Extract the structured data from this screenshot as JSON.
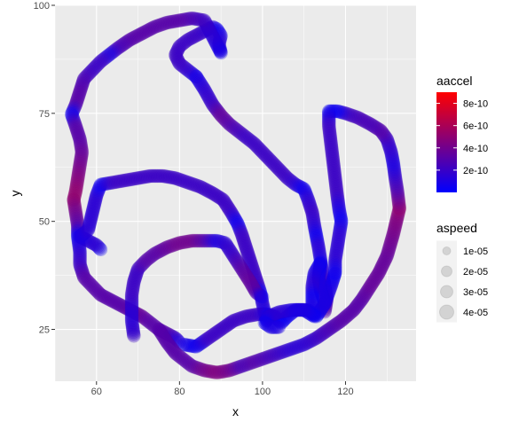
{
  "chart_data": {
    "type": "scatter",
    "title": "",
    "xlabel": "x",
    "ylabel": "y",
    "xlim": [
      50,
      137
    ],
    "ylim": [
      13,
      100
    ],
    "x_ticks": [
      60,
      80,
      100,
      120
    ],
    "y_ticks": [
      25,
      50,
      75,
      100
    ],
    "x_minor_ticks": [
      50,
      70,
      90,
      110,
      130
    ],
    "y_minor_ticks": [
      37.5,
      62.5,
      87.5
    ],
    "grid": true,
    "panel_background": "#EBEBEB",
    "grid_color": "#FFFFFF",
    "point_alpha": 0.28,
    "legend_position": "right",
    "color_legend": {
      "title": "aaccel",
      "range": [
        0,
        9e-10
      ],
      "gradient": [
        "#0000FF",
        "#FF0000"
      ],
      "breaks": [
        {
          "value": 2e-10,
          "label": "2e-10"
        },
        {
          "value": 4e-10,
          "label": "4e-10"
        },
        {
          "value": 6e-10,
          "label": "6e-10"
        },
        {
          "value": 8e-10,
          "label": "8e-10"
        }
      ]
    },
    "size_legend": {
      "title": "aspeed",
      "entries": [
        {
          "value": 1e-05,
          "label": "1e-05"
        },
        {
          "value": 2e-05,
          "label": "2e-05"
        },
        {
          "value": 3e-05,
          "label": "3e-05"
        },
        {
          "value": 4e-05,
          "label": "4e-05"
        }
      ]
    },
    "series": [
      {
        "points": [
          [
            84,
            83.5,
            0.8
          ],
          [
            82,
            85,
            1.5
          ],
          [
            80,
            86.5,
            2
          ],
          [
            79,
            88.5,
            2
          ],
          [
            80,
            90.5,
            2
          ],
          [
            82,
            92,
            2
          ],
          [
            85,
            93.5,
            2
          ],
          [
            88,
            95,
            1.5
          ],
          [
            89,
            94.5,
            0.5
          ],
          [
            90,
            93,
            1
          ],
          [
            89.5,
            91,
            1.5
          ],
          [
            90,
            89,
            0.8
          ],
          [
            86,
            96.5,
            2
          ],
          [
            83,
            97,
            2.5
          ],
          [
            80,
            96.5,
            3
          ],
          [
            77,
            96,
            3
          ],
          [
            74,
            95,
            3
          ],
          [
            71,
            93.5,
            3
          ],
          [
            68,
            92,
            3
          ],
          [
            65,
            90,
            2.5
          ],
          [
            63,
            88.5,
            1
          ],
          [
            61,
            87,
            2
          ],
          [
            59,
            85,
            2
          ],
          [
            57,
            83,
            2.5
          ],
          [
            56,
            80,
            3
          ],
          [
            55,
            77,
            3
          ],
          [
            54,
            74.8,
            0.5
          ],
          [
            55,
            72,
            3
          ],
          [
            56,
            69,
            3
          ],
          [
            56.5,
            66,
            3.5
          ],
          [
            56,
            63,
            4
          ],
          [
            55.5,
            60,
            4.5
          ],
          [
            55,
            57,
            5
          ],
          [
            54.5,
            55,
            5
          ]
        ]
      },
      {
        "points": [
          [
            84,
            83.5,
            0.8
          ],
          [
            86,
            80.5,
            1.5
          ],
          [
            88,
            77,
            2
          ],
          [
            90,
            74.5,
            3.5
          ],
          [
            92,
            72.5,
            3
          ],
          [
            94,
            71,
            2.5
          ],
          [
            96,
            69.5,
            2
          ],
          [
            98,
            68,
            2
          ],
          [
            100,
            66,
            2
          ],
          [
            102,
            64,
            2
          ],
          [
            104,
            62,
            2
          ],
          [
            106,
            60,
            2
          ],
          [
            108,
            58.5,
            1.5
          ],
          [
            110,
            57.5,
            0.5
          ],
          [
            111,
            55,
            1.5
          ],
          [
            112,
            52,
            2
          ],
          [
            112.5,
            49,
            1.5
          ],
          [
            113,
            46.5,
            0.5
          ],
          [
            113.5,
            44,
            1.5
          ],
          [
            114,
            41,
            1
          ],
          [
            114.5,
            38,
            1.5
          ],
          [
            115,
            35,
            2
          ],
          [
            115.5,
            32,
            2.5
          ],
          [
            115,
            29,
            3
          ]
        ]
      },
      {
        "points": [
          [
            54.5,
            55,
            5
          ],
          [
            55,
            52,
            4
          ],
          [
            55.5,
            49,
            3
          ],
          [
            55.5,
            46.5,
            0.5
          ],
          [
            56,
            43,
            1.5
          ],
          [
            56,
            40,
            2
          ],
          [
            57,
            37,
            3
          ],
          [
            59,
            35,
            3
          ],
          [
            61,
            33,
            3
          ],
          [
            63,
            32,
            3
          ],
          [
            65,
            31,
            3
          ],
          [
            67,
            30,
            3
          ],
          [
            69,
            29,
            3.5
          ],
          [
            71,
            28,
            3.5
          ],
          [
            73,
            26.5,
            3
          ],
          [
            75,
            25,
            3
          ],
          [
            77,
            24,
            3
          ],
          [
            79,
            23,
            2
          ],
          [
            80,
            22,
            1
          ]
        ]
      },
      {
        "points": [
          [
            61,
            43.5,
            0.5
          ],
          [
            60,
            44.5,
            1.5
          ],
          [
            58,
            45.5,
            1.5
          ],
          [
            56,
            46.5,
            1
          ],
          [
            58,
            48,
            1.5
          ],
          [
            59,
            52,
            1.5
          ],
          [
            60,
            56,
            1.5
          ],
          [
            61,
            58.5,
            0.5
          ],
          [
            64,
            59,
            2
          ],
          [
            67,
            59.5,
            2
          ],
          [
            70,
            60,
            2
          ],
          [
            73,
            60.5,
            2
          ],
          [
            76,
            60.5,
            2
          ],
          [
            79,
            60,
            2
          ],
          [
            82,
            59,
            2
          ],
          [
            85,
            58,
            2
          ],
          [
            88,
            56.5,
            2
          ],
          [
            90.5,
            55,
            2
          ],
          [
            92.5,
            52,
            2
          ],
          [
            94,
            49.5,
            0.5
          ],
          [
            95,
            47,
            2
          ],
          [
            96,
            44,
            2
          ],
          [
            97,
            41,
            2
          ],
          [
            98,
            38,
            2
          ],
          [
            99,
            35,
            2
          ],
          [
            99.5,
            33.5,
            0.5
          ],
          [
            100,
            31,
            1.5
          ],
          [
            100.5,
            29,
            1
          ],
          [
            101,
            27,
            0.5
          ]
        ]
      },
      {
        "points": [
          [
            69,
            23.5,
            2
          ],
          [
            68.5,
            27,
            1.5
          ],
          [
            68.5,
            30,
            1.5
          ],
          [
            68.5,
            33,
            2
          ],
          [
            69,
            36,
            2
          ],
          [
            70,
            39,
            2
          ],
          [
            72,
            41,
            3
          ],
          [
            74,
            42.5,
            3
          ],
          [
            77,
            44,
            3.5
          ],
          [
            80,
            45,
            4
          ],
          [
            83,
            45.5,
            4
          ],
          [
            86,
            45.5,
            3
          ],
          [
            89,
            45.5,
            1
          ],
          [
            91,
            45,
            1.5
          ],
          [
            93,
            42,
            2
          ],
          [
            95,
            39,
            3
          ],
          [
            97,
            36,
            3.5
          ],
          [
            98.5,
            33.5,
            3
          ],
          [
            100,
            32.5,
            0.5
          ]
        ]
      },
      {
        "points": [
          [
            81,
            21.5,
            1
          ],
          [
            84,
            21,
            0.5
          ],
          [
            87,
            23,
            2
          ],
          [
            90,
            25,
            2
          ],
          [
            93,
            27,
            2
          ],
          [
            96,
            28,
            2
          ],
          [
            99,
            28.5,
            2
          ],
          [
            101,
            28.5,
            1
          ],
          [
            103,
            28,
            0.5
          ],
          [
            104.5,
            26.5,
            0.5
          ],
          [
            106,
            28,
            0.5
          ],
          [
            108,
            29.5,
            1
          ],
          [
            111,
            29.5,
            1
          ],
          [
            113,
            28,
            0.5
          ],
          [
            115,
            31,
            1
          ],
          [
            116.5,
            35,
            1
          ],
          [
            117.5,
            38,
            0.5
          ]
        ]
      },
      {
        "points": [
          [
            75,
            25,
            3
          ],
          [
            77,
            22,
            3
          ],
          [
            79,
            19.5,
            3
          ],
          [
            81,
            18,
            3
          ],
          [
            83,
            16.5,
            3
          ],
          [
            86,
            15.5,
            4
          ],
          [
            89,
            15,
            4.5
          ],
          [
            92,
            15.5,
            4
          ],
          [
            95,
            16.5,
            2.5
          ],
          [
            98,
            17.5,
            3
          ],
          [
            101,
            18.5,
            2.5
          ],
          [
            104,
            19.5,
            2
          ],
          [
            107,
            20.5,
            1.5
          ],
          [
            110,
            21.5,
            1.5
          ],
          [
            113,
            23,
            2
          ],
          [
            116,
            25,
            2.5
          ],
          [
            119,
            27,
            3
          ],
          [
            122,
            29.5,
            3
          ],
          [
            124,
            32,
            3
          ],
          [
            126,
            35,
            3.5
          ],
          [
            128,
            38,
            3.5
          ],
          [
            130,
            42,
            3.5
          ],
          [
            131.5,
            47,
            4
          ],
          [
            132.5,
            51,
            4.5
          ],
          [
            133,
            53,
            5
          ]
        ]
      },
      {
        "points": [
          [
            133,
            53,
            5
          ],
          [
            132.5,
            57,
            3
          ],
          [
            132,
            60,
            2
          ],
          [
            131.5,
            63.5,
            1
          ],
          [
            131,
            66,
            1.5
          ],
          [
            130,
            69,
            2
          ],
          [
            128.5,
            71,
            3
          ],
          [
            126,
            72.5,
            2.5
          ],
          [
            123,
            74,
            2.5
          ],
          [
            120,
            75,
            2
          ],
          [
            118,
            75.5,
            0.5
          ],
          [
            116,
            75.5,
            0.5
          ],
          [
            116,
            72,
            2
          ],
          [
            116.5,
            68,
            2
          ],
          [
            117,
            64,
            2
          ],
          [
            117.5,
            60,
            2
          ],
          [
            118,
            56,
            2
          ],
          [
            118.5,
            52.5,
            1
          ],
          [
            119,
            50,
            0.5
          ],
          [
            118.5,
            47,
            1.5
          ],
          [
            118,
            44,
            1.5
          ],
          [
            117.5,
            41,
            1.5
          ],
          [
            117.5,
            38,
            0.5
          ]
        ]
      },
      {
        "points": [
          [
            115,
            31,
            1
          ],
          [
            114,
            34,
            1
          ],
          [
            113.5,
            37,
            1
          ],
          [
            114,
            40.5,
            0.5
          ],
          [
            112.5,
            38,
            1
          ],
          [
            112,
            35,
            1.5
          ],
          [
            112,
            32.5,
            0.5
          ],
          [
            112,
            30,
            1
          ],
          [
            112.5,
            28,
            0.5
          ],
          [
            110,
            29.5,
            1
          ],
          [
            107,
            29.5,
            1
          ],
          [
            104,
            29,
            1.5
          ],
          [
            101.5,
            28,
            1.5
          ],
          [
            100.5,
            26.5,
            0.5
          ],
          [
            102,
            25.5,
            1
          ],
          [
            104,
            25.5,
            1
          ]
        ]
      }
    ]
  }
}
